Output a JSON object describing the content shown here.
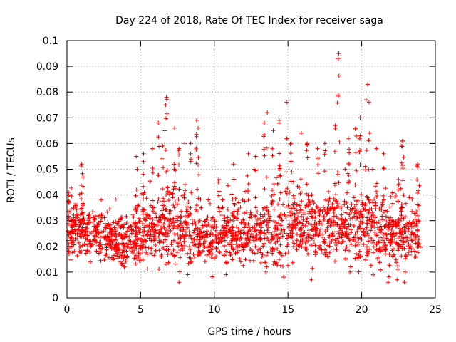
{
  "chart_data": {
    "type": "scatter",
    "title": "Day 224 of 2018, Rate Of TEC Index for receiver saga",
    "xlabel": "GPS time / hours",
    "ylabel": "ROTI / TECUs",
    "xlim": [
      0,
      25
    ],
    "ylim": [
      0,
      0.1
    ],
    "xticks": [
      0,
      5,
      10,
      15,
      20,
      25
    ],
    "xtick_labels": [
      "0",
      "5",
      "10",
      "15",
      "20",
      "25"
    ],
    "yticks": [
      0,
      0.01,
      0.02,
      0.03,
      0.04,
      0.05,
      0.06,
      0.07,
      0.08,
      0.09,
      0.1
    ],
    "ytick_labels": [
      "0",
      "0.01",
      "0.02",
      "0.03",
      "0.04",
      "0.05",
      "0.06",
      "0.07",
      "0.08",
      "0.09",
      "0.1"
    ],
    "grid": true,
    "marker": "+",
    "color": "#ff0000",
    "series": [
      {
        "name": "ROTI",
        "point_count_estimate": 2600,
        "baseline": [
          [
            0,
            0.025
          ],
          [
            1,
            0.026
          ],
          [
            2,
            0.024
          ],
          [
            3,
            0.022
          ],
          [
            4,
            0.022
          ],
          [
            5,
            0.023
          ],
          [
            6,
            0.026
          ],
          [
            7,
            0.027
          ],
          [
            8,
            0.025
          ],
          [
            9,
            0.025
          ],
          [
            10,
            0.024
          ],
          [
            11,
            0.024
          ],
          [
            12,
            0.024
          ],
          [
            13,
            0.025
          ],
          [
            14,
            0.026
          ],
          [
            15,
            0.027
          ],
          [
            16,
            0.027
          ],
          [
            17,
            0.028
          ],
          [
            18,
            0.027
          ],
          [
            19,
            0.027
          ],
          [
            20,
            0.026
          ],
          [
            21,
            0.025
          ],
          [
            22,
            0.024
          ],
          [
            23,
            0.024
          ],
          [
            24,
            0.025
          ]
        ],
        "spread": [
          [
            0,
            0.008
          ],
          [
            2,
            0.008
          ],
          [
            4,
            0.008
          ],
          [
            6,
            0.011
          ],
          [
            7,
            0.012
          ],
          [
            9,
            0.01
          ],
          [
            11,
            0.008
          ],
          [
            13,
            0.01
          ],
          [
            14,
            0.012
          ],
          [
            16,
            0.012
          ],
          [
            18,
            0.011
          ],
          [
            20,
            0.012
          ],
          [
            21,
            0.011
          ],
          [
            22,
            0.009
          ],
          [
            24,
            0.009
          ]
        ],
        "peaks": [
          [
            0.1,
            0.041
          ],
          [
            1.0,
            0.052
          ],
          [
            1.1,
            0.047
          ],
          [
            4.7,
            0.055
          ],
          [
            5.2,
            0.056
          ],
          [
            5.8,
            0.058
          ],
          [
            6.2,
            0.068
          ],
          [
            6.5,
            0.059
          ],
          [
            6.7,
            0.075
          ],
          [
            6.75,
            0.078
          ],
          [
            7.3,
            0.066
          ],
          [
            7.6,
            0.058
          ],
          [
            8.0,
            0.06
          ],
          [
            8.4,
            0.06
          ],
          [
            8.8,
            0.069
          ],
          [
            8.9,
            0.066
          ],
          [
            10.3,
            0.046
          ],
          [
            11.3,
            0.052
          ],
          [
            12.3,
            0.056
          ],
          [
            12.8,
            0.055
          ],
          [
            13.4,
            0.068
          ],
          [
            13.6,
            0.072
          ],
          [
            14.0,
            0.065
          ],
          [
            14.4,
            0.069
          ],
          [
            14.9,
            0.076
          ],
          [
            15.2,
            0.06
          ],
          [
            15.9,
            0.064
          ],
          [
            16.3,
            0.06
          ],
          [
            17.0,
            0.058
          ],
          [
            17.5,
            0.06
          ],
          [
            18.2,
            0.067
          ],
          [
            18.4,
            0.093
          ],
          [
            18.45,
            0.095
          ],
          [
            19.1,
            0.062
          ],
          [
            19.6,
            0.066
          ],
          [
            19.9,
            0.07
          ],
          [
            20.3,
            0.077
          ],
          [
            20.4,
            0.083
          ],
          [
            20.5,
            0.076
          ],
          [
            21.0,
            0.058
          ],
          [
            21.5,
            0.056
          ],
          [
            22.5,
            0.046
          ],
          [
            22.7,
            0.059
          ],
          [
            22.8,
            0.061
          ],
          [
            23.8,
            0.052
          ]
        ],
        "lows": [
          [
            7.6,
            0.006
          ],
          [
            8.2,
            0.009
          ],
          [
            10.8,
            0.009
          ],
          [
            13.5,
            0.01
          ],
          [
            16.6,
            0.007
          ],
          [
            19.2,
            0.01
          ],
          [
            21.8,
            0.006
          ],
          [
            22.4,
            0.007
          ],
          [
            22.9,
            0.006
          ]
        ]
      }
    ]
  }
}
